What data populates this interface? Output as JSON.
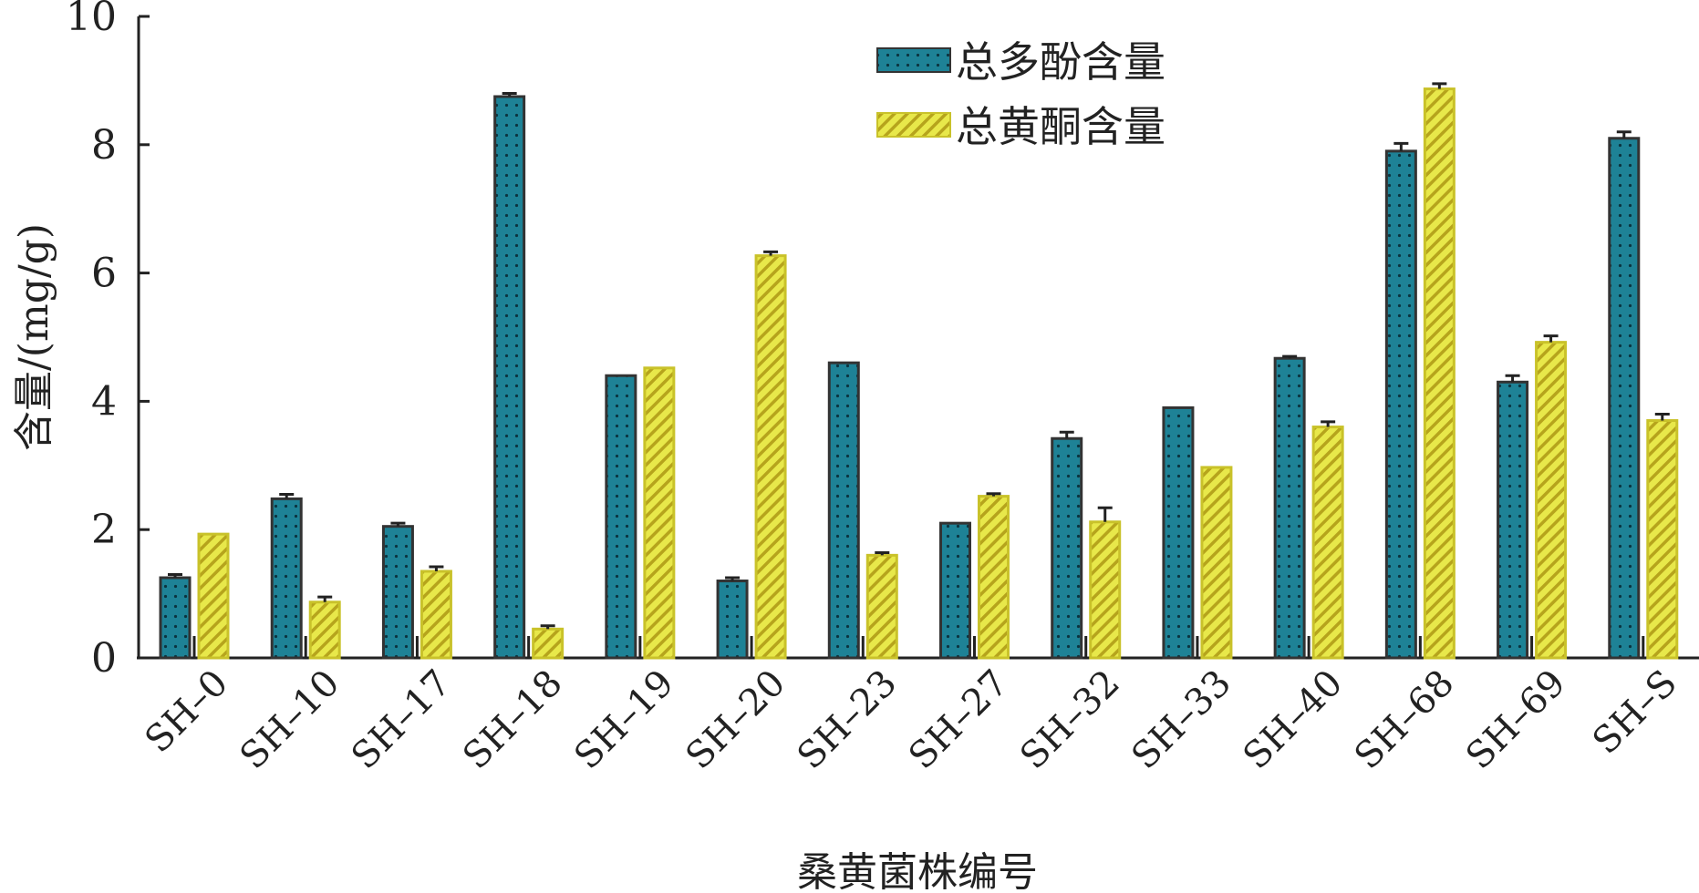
{
  "chart_data": {
    "type": "bar",
    "title": "",
    "xlabel": "桑黄菌株编号",
    "ylabel": "含量/(mg/g)",
    "ylim": [
      0,
      10
    ],
    "yticks": [
      0,
      2,
      4,
      6,
      8,
      10
    ],
    "grid": false,
    "legend_position": "top-center",
    "categories": [
      "SH–0",
      "SH–10",
      "SH–17",
      "SH–18",
      "SH–19",
      "SH–20",
      "SH–23",
      "SH–27",
      "SH–32",
      "SH–33",
      "SH–40",
      "SH–68",
      "SH–69",
      "SH–S"
    ],
    "series": [
      {
        "name": "总多酚含量",
        "color": "#1e8296",
        "pattern": "dots",
        "values": [
          1.25,
          2.48,
          2.05,
          8.75,
          4.4,
          1.2,
          4.6,
          2.1,
          3.42,
          3.9,
          4.67,
          7.9,
          4.3,
          8.1
        ],
        "errors": [
          0.05,
          0.07,
          0.05,
          0.05,
          0.0,
          0.05,
          0.0,
          0.0,
          0.1,
          0.0,
          0.03,
          0.12,
          0.1,
          0.1
        ]
      },
      {
        "name": "总黄酮含量",
        "color": "#e0e23a",
        "pattern": "diagonal-hatch",
        "values": [
          1.93,
          0.87,
          1.35,
          0.45,
          4.52,
          6.27,
          1.6,
          2.52,
          2.12,
          2.97,
          3.6,
          8.87,
          4.92,
          3.7
        ],
        "errors": [
          0.0,
          0.08,
          0.07,
          0.05,
          0.0,
          0.06,
          0.04,
          0.04,
          0.22,
          0.0,
          0.08,
          0.08,
          0.1,
          0.1
        ]
      }
    ]
  }
}
